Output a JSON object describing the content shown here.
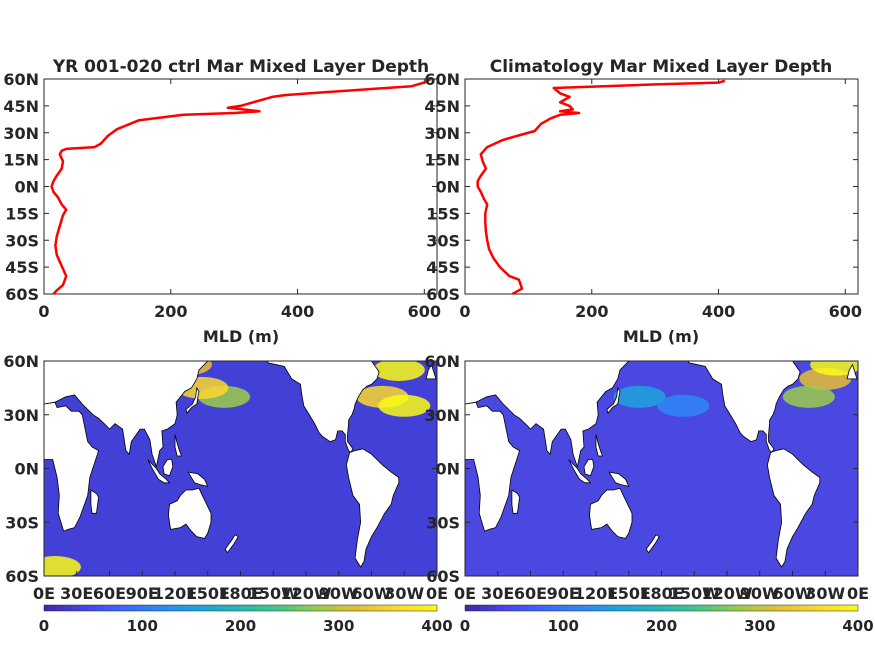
{
  "colors": {
    "line": "#ff0000",
    "axes": "#262626",
    "land": "#ffffff",
    "colormap": [
      "#3e26a8",
      "#4743e6",
      "#3d66fb",
      "#2e87f7",
      "#1ca5db",
      "#21bab7",
      "#47c784",
      "#9bcc49",
      "#e6bf33",
      "#fcd82f",
      "#f9fb15"
    ]
  },
  "chart_data": [
    {
      "type": "line",
      "title": "YR 001-020 ctrl Mar Mixed Layer Depth",
      "xlabel": "MLD (m)",
      "ylabel": "",
      "xlim": [
        0,
        620
      ],
      "ylim": [
        -60,
        60
      ],
      "xticks": [
        0,
        200,
        400,
        600
      ],
      "xtick_labels": [
        "0",
        "200",
        "400",
        "600"
      ],
      "yticks": [
        60,
        45,
        30,
        15,
        0,
        -15,
        -30,
        -45,
        -60
      ],
      "ytick_labels": [
        "60N",
        "45N",
        "30N",
        "15N",
        "0N",
        "15S",
        "30S",
        "45S",
        "60S"
      ],
      "series": [
        {
          "x": [
            15,
            20,
            30,
            35,
            30,
            25,
            20,
            18,
            20,
            25,
            30,
            35,
            28,
            22,
            15,
            12,
            15,
            20,
            28,
            30,
            25,
            28,
            35,
            80,
            90,
            100,
            115,
            150,
            220,
            300,
            340,
            290,
            310,
            330,
            360,
            380,
            420,
            500,
            580,
            600,
            610
          ],
          "y": [
            -60,
            -58,
            -55,
            -50,
            -46,
            -42,
            -38,
            -33,
            -28,
            -22,
            -16,
            -13,
            -10,
            -6,
            -3,
            0,
            3,
            6,
            10,
            14,
            18,
            20,
            21,
            22,
            24,
            28,
            32,
            37,
            40,
            41,
            42,
            44,
            45,
            47,
            50,
            51,
            52,
            54,
            56,
            58,
            60
          ]
        }
      ]
    },
    {
      "type": "line",
      "title": "Climatology Mar Mixed Layer Depth",
      "xlabel": "MLD (m)",
      "ylabel": "",
      "xlim": [
        0,
        620
      ],
      "ylim": [
        -60,
        60
      ],
      "xticks": [
        0,
        200,
        400,
        600
      ],
      "xtick_labels": [
        "0",
        "200",
        "400",
        "600"
      ],
      "yticks": [
        60,
        45,
        30,
        15,
        0,
        -15,
        -30,
        -45,
        -60
      ],
      "ytick_labels": [
        "60N",
        "45N",
        "30N",
        "15N",
        "0N",
        "15S",
        "30S",
        "45S",
        "60S"
      ],
      "series": [
        {
          "x": [
            75,
            90,
            85,
            70,
            55,
            45,
            38,
            35,
            33,
            32,
            32,
            35,
            30,
            25,
            20,
            20,
            25,
            33,
            28,
            25,
            35,
            60,
            90,
            110,
            120,
            135,
            150,
            180,
            150,
            170,
            165,
            150,
            155,
            165,
            150,
            140,
            300,
            400,
            410
          ],
          "y": [
            -60,
            -57,
            -52,
            -50,
            -45,
            -40,
            -35,
            -30,
            -25,
            -20,
            -15,
            -10,
            -7,
            -3,
            0,
            3,
            6,
            10,
            14,
            18,
            22,
            26,
            29,
            31,
            35,
            38,
            40,
            41,
            42,
            43,
            45,
            47,
            48,
            50,
            52,
            55,
            57,
            58,
            59
          ]
        }
      ]
    },
    {
      "type": "heatmap",
      "title": "",
      "xlabel": "",
      "ylabel": "",
      "xlim": [
        0,
        360
      ],
      "ylim": [
        -60,
        60
      ],
      "xtick_labels": [
        "0E",
        "30E",
        "60E",
        "90E",
        "120E",
        "150E",
        "180E",
        "150W",
        "120W",
        "90W",
        "60W",
        "30W",
        "0E"
      ],
      "ytick_labels": [
        "60N",
        "30N",
        "0N",
        "30S",
        "60S"
      ],
      "colorbar": {
        "min": 0,
        "max": 400,
        "tick_labels": [
          "0",
          "100",
          "200",
          "300",
          "400"
        ]
      },
      "hotspots": [
        {
          "lon": 165,
          "lat": 40,
          "value": 280
        },
        {
          "lon": 145,
          "lat": 45,
          "value": 350
        },
        {
          "lon": 325,
          "lat": 55,
          "value": 400
        },
        {
          "lon": 310,
          "lat": 40,
          "value": 340
        },
        {
          "lon": 330,
          "lat": 35,
          "value": 400
        },
        {
          "lon": 10,
          "lat": -55,
          "value": 380
        },
        {
          "lon": 130,
          "lat": 58,
          "value": 330
        }
      ]
    },
    {
      "type": "heatmap",
      "title": "",
      "xlabel": "",
      "ylabel": "",
      "xlim": [
        0,
        360
      ],
      "ylim": [
        -60,
        60
      ],
      "xtick_labels": [
        "0E",
        "30E",
        "60E",
        "90E",
        "120E",
        "150E",
        "180E",
        "150W",
        "120W",
        "90W",
        "60W",
        "30W",
        "0E"
      ],
      "ytick_labels": [
        "60N",
        "30N",
        "0N",
        "30S",
        "60S"
      ],
      "colorbar": {
        "min": 0,
        "max": 400,
        "tick_labels": [
          "0",
          "100",
          "200",
          "300",
          "400"
        ]
      },
      "hotspots": [
        {
          "lon": 160,
          "lat": 40,
          "value": 170
        },
        {
          "lon": 330,
          "lat": 50,
          "value": 330
        },
        {
          "lon": 340,
          "lat": 58,
          "value": 400
        },
        {
          "lon": 315,
          "lat": 40,
          "value": 260
        },
        {
          "lon": 200,
          "lat": 35,
          "value": 110
        }
      ]
    }
  ]
}
